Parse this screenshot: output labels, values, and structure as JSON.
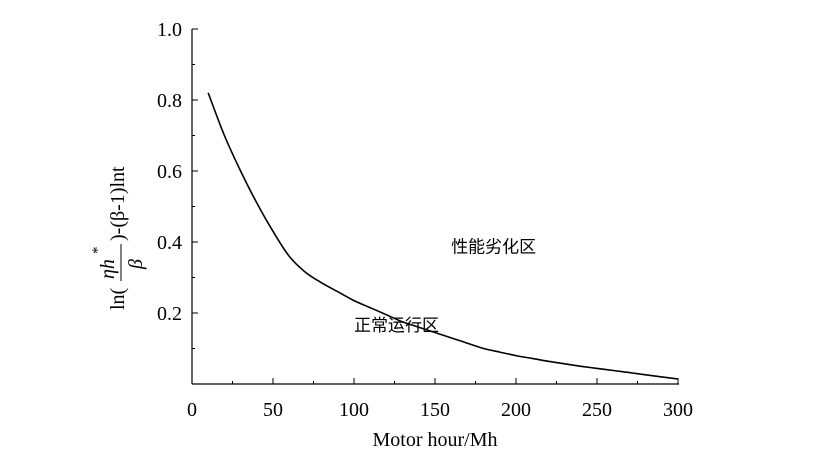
{
  "chart_data": {
    "type": "line",
    "title": "",
    "xlabel": "Motor hour/Mh",
    "ylabel": {
      "prefix": "ln(",
      "numerator": "ηh",
      "superscript": "*",
      "denominator": "β",
      "suffix": ")-(β-1)lnt"
    },
    "xlim": [
      0,
      300
    ],
    "ylim": [
      0,
      1.0
    ],
    "xticks": [
      "0",
      "50",
      "100",
      "150",
      "200",
      "250",
      "300"
    ],
    "yticks": [
      "0.2",
      "0.4",
      "0.6",
      "0.8",
      "1.0"
    ],
    "ytick_values": [
      0.2,
      0.4,
      0.6,
      0.8,
      1.0
    ],
    "xtick_values": [
      0,
      50,
      100,
      150,
      200,
      250,
      300
    ],
    "grid": false,
    "series": [
      {
        "x": [
          10,
          20,
          30,
          40,
          50,
          60,
          70,
          80,
          90,
          100,
          110,
          120,
          130,
          140,
          150,
          160,
          170,
          180,
          190,
          200,
          210,
          220,
          230,
          240,
          250,
          260,
          270,
          280,
          290,
          300
        ],
        "values": [
          0.82,
          0.7,
          0.6,
          0.51,
          0.43,
          0.36,
          0.315,
          0.285,
          0.26,
          0.235,
          0.215,
          0.195,
          0.175,
          0.16,
          0.145,
          0.13,
          0.115,
          0.1,
          0.09,
          0.08,
          0.072,
          0.064,
          0.057,
          0.05,
          0.044,
          0.038,
          0.032,
          0.026,
          0.02,
          0.014
        ]
      }
    ],
    "annotations": [
      {
        "text": "性能劣化区",
        "x": 160,
        "y": 0.37
      },
      {
        "text": "正常运行区",
        "x": 100,
        "y": 0.15
      }
    ],
    "line_color": "#000000"
  }
}
